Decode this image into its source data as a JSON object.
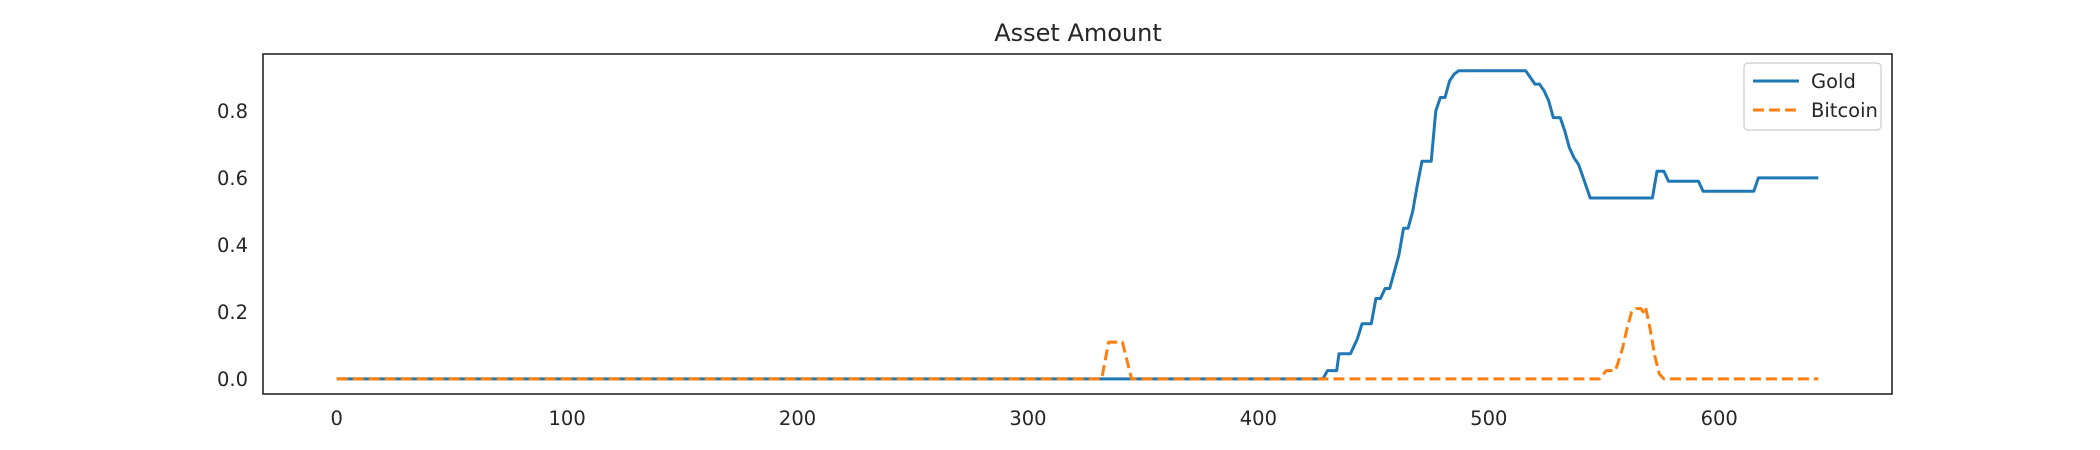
{
  "chart_data": {
    "type": "line",
    "title": "Asset Amount",
    "xlabel": "",
    "ylabel": "",
    "xlim": [
      -32,
      675
    ],
    "ylim": [
      -0.045,
      0.97
    ],
    "xticks": [
      0,
      100,
      200,
      300,
      400,
      500,
      600
    ],
    "yticks": [
      0.0,
      0.2,
      0.4,
      0.6,
      0.8
    ],
    "ytick_labels": [
      "0.0",
      "0.2",
      "0.4",
      "0.6",
      "0.8"
    ],
    "grid": false,
    "legend_position": "top-right",
    "series": [
      {
        "name": "Gold",
        "color": "#1f77b4",
        "dash": "solid",
        "points": [
          [
            0,
            0
          ],
          [
            428,
            0
          ],
          [
            430,
            0.025
          ],
          [
            434,
            0.025
          ],
          [
            435,
            0.075
          ],
          [
            440,
            0.075
          ],
          [
            443,
            0.12
          ],
          [
            445,
            0.165
          ],
          [
            449,
            0.165
          ],
          [
            451,
            0.24
          ],
          [
            453,
            0.24
          ],
          [
            455,
            0.27
          ],
          [
            457,
            0.27
          ],
          [
            459,
            0.32
          ],
          [
            461,
            0.37
          ],
          [
            463,
            0.45
          ],
          [
            465,
            0.45
          ],
          [
            467,
            0.5
          ],
          [
            469,
            0.58
          ],
          [
            471,
            0.65
          ],
          [
            475,
            0.65
          ],
          [
            477,
            0.8
          ],
          [
            479,
            0.84
          ],
          [
            481,
            0.84
          ],
          [
            483,
            0.89
          ],
          [
            485,
            0.91
          ],
          [
            487,
            0.92
          ],
          [
            516,
            0.92
          ],
          [
            518,
            0.9
          ],
          [
            520,
            0.88
          ],
          [
            522,
            0.88
          ],
          [
            524,
            0.86
          ],
          [
            526,
            0.83
          ],
          [
            528,
            0.78
          ],
          [
            531,
            0.78
          ],
          [
            533,
            0.74
          ],
          [
            535,
            0.69
          ],
          [
            537,
            0.66
          ],
          [
            539,
            0.64
          ],
          [
            542,
            0.58
          ],
          [
            544,
            0.54
          ],
          [
            571,
            0.54
          ],
          [
            573,
            0.62
          ],
          [
            576,
            0.62
          ],
          [
            578,
            0.59
          ],
          [
            591,
            0.59
          ],
          [
            593,
            0.56
          ],
          [
            615,
            0.56
          ],
          [
            617,
            0.6
          ],
          [
            643,
            0.6
          ]
        ]
      },
      {
        "name": "Bitcoin",
        "color": "#ff7f0e",
        "dash": "dashed",
        "points": [
          [
            0,
            0
          ],
          [
            332,
            0
          ],
          [
            335,
            0.11
          ],
          [
            341,
            0.11
          ],
          [
            345,
            0
          ],
          [
            548,
            0
          ],
          [
            551,
            0.025
          ],
          [
            555,
            0.025
          ],
          [
            558,
            0.09
          ],
          [
            560,
            0.15
          ],
          [
            562,
            0.2
          ],
          [
            564,
            0.21
          ],
          [
            566,
            0.21
          ],
          [
            567,
            0.2
          ],
          [
            568,
            0.215
          ],
          [
            570,
            0.15
          ],
          [
            572,
            0.07
          ],
          [
            574,
            0.015
          ],
          [
            576,
            0
          ],
          [
            643,
            0
          ]
        ]
      }
    ]
  }
}
